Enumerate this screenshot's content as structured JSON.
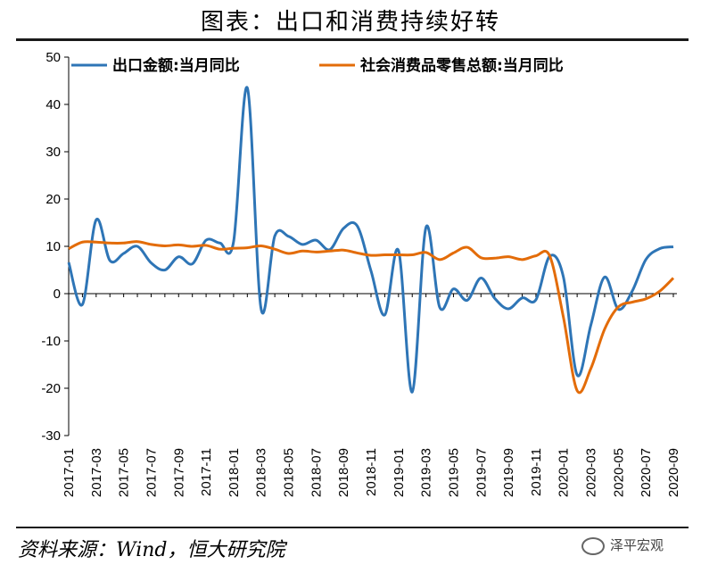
{
  "title": "图表：出口和消费持续好转",
  "source": "资料来源：Wind，恒大研究院",
  "watermark": "泽平宏观",
  "chart_data": {
    "type": "line",
    "ylim": [
      -30,
      50
    ],
    "yticks": [
      -30,
      -20,
      -10,
      0,
      10,
      20,
      30,
      40,
      50
    ],
    "x": [
      "2017-01",
      "2017-02",
      "2017-03",
      "2017-04",
      "2017-05",
      "2017-06",
      "2017-07",
      "2017-08",
      "2017-09",
      "2017-10",
      "2017-11",
      "2017-12",
      "2018-01",
      "2018-02",
      "2018-03",
      "2018-04",
      "2018-05",
      "2018-06",
      "2018-07",
      "2018-08",
      "2018-09",
      "2018-10",
      "2018-11",
      "2018-12",
      "2019-01",
      "2019-02",
      "2019-03",
      "2019-04",
      "2019-05",
      "2019-06",
      "2019-07",
      "2019-08",
      "2019-09",
      "2019-10",
      "2019-11",
      "2019-12",
      "2020-01",
      "2020-02",
      "2020-03",
      "2020-04",
      "2020-05",
      "2020-06",
      "2020-07",
      "2020-08",
      "2020-09"
    ],
    "xtick_labels": [
      "2017-01",
      "2017-03",
      "2017-05",
      "2017-07",
      "2017-09",
      "2017-11",
      "2018-01",
      "2018-03",
      "2018-05",
      "2018-07",
      "2018-09",
      "2018-11",
      "2019-01",
      "2019-03",
      "2019-05",
      "2019-07",
      "2019-09",
      "2019-11",
      "2020-01",
      "2020-03",
      "2020-05",
      "2020-07",
      "2020-09"
    ],
    "legend_position": "top",
    "grid": false,
    "series": [
      {
        "name": "出口金额:当月同比",
        "color": "#2e75b6",
        "values": [
          6.6,
          -2.3,
          15.6,
          7.0,
          8.5,
          10.0,
          6.5,
          5.0,
          7.8,
          6.3,
          11.3,
          10.7,
          11.0,
          43.5,
          -3.2,
          12.2,
          12.1,
          10.4,
          11.3,
          9.3,
          13.8,
          14.3,
          4.8,
          -4.5,
          9.1,
          -20.8,
          14.0,
          -2.9,
          1.0,
          -1.4,
          3.3,
          -1.0,
          -3.2,
          -0.9,
          -1.3,
          7.9,
          3.5,
          -17.2,
          -6.6,
          3.5,
          -3.3,
          0.5,
          7.2,
          9.5,
          9.9
        ]
      },
      {
        "name": "社会消费品零售总额:当月同比",
        "color": "#e36c09",
        "values": [
          9.5,
          10.9,
          10.9,
          10.7,
          10.7,
          11.0,
          10.4,
          10.1,
          10.3,
          10.0,
          10.2,
          9.4,
          9.6,
          9.7,
          10.1,
          9.4,
          8.5,
          9.0,
          8.8,
          9.0,
          9.2,
          8.6,
          8.1,
          8.2,
          8.2,
          8.2,
          8.7,
          7.2,
          8.6,
          9.8,
          7.6,
          7.5,
          7.8,
          7.2,
          8.0,
          8.0,
          -5.0,
          -20.5,
          -15.8,
          -7.5,
          -2.8,
          -1.8,
          -1.1,
          0.5,
          3.3
        ]
      }
    ]
  }
}
